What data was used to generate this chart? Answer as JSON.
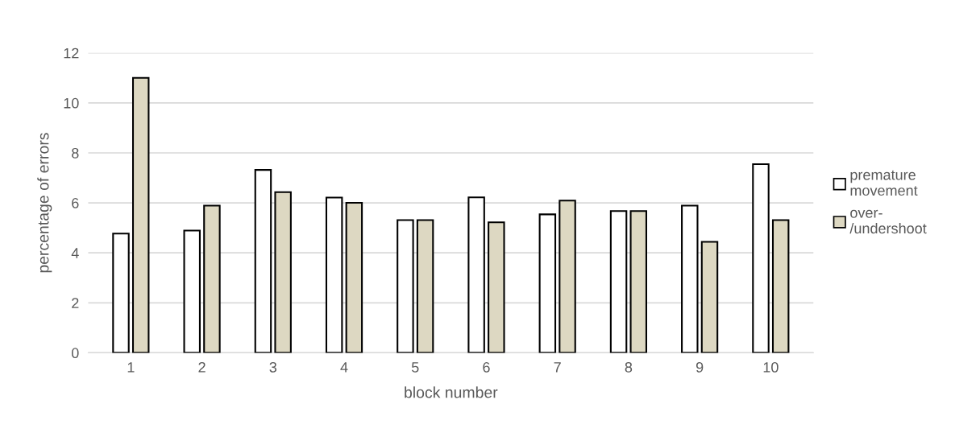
{
  "chart_data": {
    "type": "bar",
    "xlabel": "block number",
    "ylabel": "percentage of errors",
    "categories": [
      "1",
      "2",
      "3",
      "4",
      "5",
      "6",
      "7",
      "8",
      "9",
      "10"
    ],
    "series": [
      {
        "name": "premature\nmovement",
        "color": "#ffffff",
        "values": [
          4.77,
          4.89,
          7.32,
          6.21,
          5.31,
          6.22,
          5.54,
          5.67,
          5.89,
          7.55
        ]
      },
      {
        "name": "over-\n/undershoot",
        "color": "#ddd8c2",
        "values": [
          11.0,
          5.89,
          6.43,
          6.0,
          5.31,
          5.22,
          6.09,
          5.67,
          4.44,
          5.31
        ]
      }
    ],
    "ylim": [
      0,
      12
    ],
    "yticks": [
      0,
      2,
      4,
      6,
      8,
      10,
      12
    ],
    "grid": "y",
    "legend": "right"
  }
}
